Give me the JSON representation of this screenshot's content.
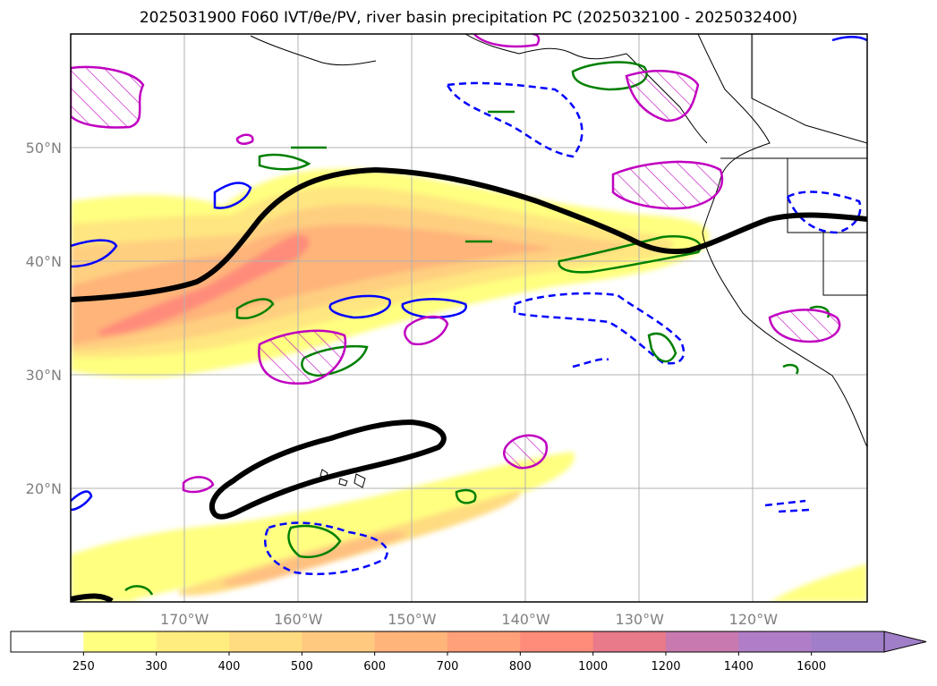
{
  "title": "2025031900 F060 IVT/θe/PV, river basin precipitation PC (2025032100 - 2025032400)",
  "map": {
    "projection": "PlateCarree",
    "lon_range": [
      -180,
      -110
    ],
    "lat_range": [
      10,
      60
    ],
    "gridlines": true,
    "lat_ticks": [
      {
        "value": 20,
        "label": "20°N"
      },
      {
        "value": 30,
        "label": "30°N"
      },
      {
        "value": 40,
        "label": "40°N"
      },
      {
        "value": 50,
        "label": "50°N"
      }
    ],
    "lon_ticks": [
      {
        "value": -170,
        "label": "170°W"
      },
      {
        "value": -160,
        "label": "160°W"
      },
      {
        "value": -150,
        "label": "150°W"
      },
      {
        "value": -140,
        "label": "140°W"
      },
      {
        "value": -130,
        "label": "130°W"
      },
      {
        "value": -120,
        "label": "120°W"
      }
    ],
    "colors": {
      "coast": "#000000",
      "grid": "#b0b0b0",
      "theta_e_contour": "#000000",
      "pv_positive": "#008000",
      "pv_negative": "#0000ff",
      "precip_pc": "#c000c0"
    }
  },
  "chart_data": {
    "type": "heatmap",
    "variable": "IVT",
    "colorbar": {
      "levels": [
        250,
        300,
        400,
        500,
        600,
        700,
        800,
        1000,
        1200,
        1400,
        1600
      ],
      "labels": [
        "250",
        "300",
        "400",
        "500",
        "600",
        "700",
        "800",
        "1000",
        "1200",
        "1400",
        "1600"
      ],
      "colors": [
        "#ffffff",
        "#ffff80",
        "#ffed80",
        "#ffdc80",
        "#ffc980",
        "#ffb47a",
        "#ffa07a",
        "#ff8c7a",
        "#e87a8a",
        "#c87ab0",
        "#b07ec8",
        "#a07ec8"
      ],
      "extend": "max"
    },
    "ivt_plumes": [
      {
        "name": "north-pacific-ar",
        "lon": [
          -180,
          -170,
          -160,
          -150,
          -140,
          -130,
          -124
        ],
        "lat": [
          36,
          37,
          42,
          43,
          42,
          40,
          41
        ],
        "max": 800
      },
      {
        "name": "subtropical-plume",
        "lon": [
          -180,
          -165,
          -150,
          -140,
          -130
        ],
        "lat": [
          12,
          14,
          17,
          20,
          22
        ],
        "max": 500
      }
    ],
    "theta_e_contours": [
      {
        "name": "northern-contour",
        "lon": [
          -180,
          -172,
          -166,
          -160,
          -153,
          -140,
          -130,
          -125,
          -116,
          -110
        ],
        "lat": [
          36.5,
          37.5,
          40,
          46,
          48,
          46,
          42,
          41,
          44,
          43.5
        ]
      },
      {
        "name": "closed-contour",
        "lon": [
          -167,
          -160,
          -150,
          -147,
          -160,
          -167
        ],
        "lat": [
          17.5,
          22,
          26,
          24.5,
          19,
          17.5
        ]
      }
    ]
  }
}
